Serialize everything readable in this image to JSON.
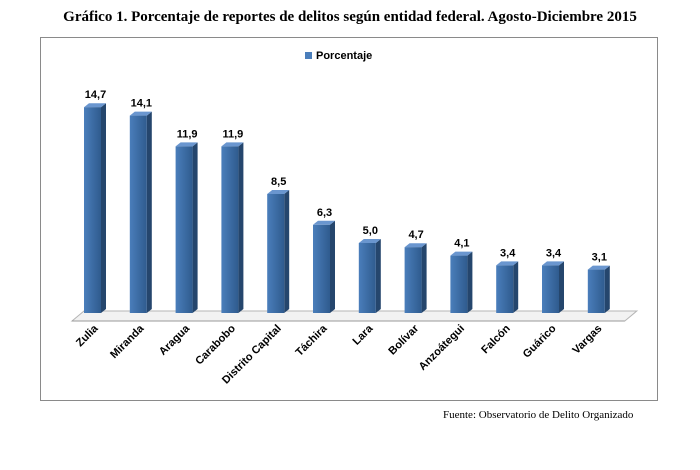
{
  "chart_data": {
    "type": "bar",
    "title": "Gráfico 1. Porcentaje de reportes de delitos según entidad federal. Agosto-Diciembre 2015",
    "source": "Fuente: Observatorio de Delito Organizado",
    "legend": {
      "placement": "top-center"
    },
    "grid": false,
    "ylim": [
      0,
      15
    ],
    "categories": [
      "Zulia",
      "Miranda",
      "Aragua",
      "Carabobo",
      "Distrito Capital",
      "Táchira",
      "Lara",
      "Bolívar",
      "Anzoátegui",
      "Falcón",
      "Guárico",
      "Vargas"
    ],
    "series": [
      {
        "name": "Porcentaje",
        "values": [
          14.7,
          14.1,
          11.9,
          11.9,
          8.5,
          6.3,
          5.0,
          4.7,
          4.1,
          3.4,
          3.4,
          3.1
        ],
        "labels": [
          "14,7",
          "14,1",
          "11,9",
          "11,9",
          "8,5",
          "6,3",
          "5,0",
          "4,7",
          "4,1",
          "3,4",
          "3,4",
          "3,1"
        ],
        "color": "#4a7ebb"
      }
    ]
  }
}
